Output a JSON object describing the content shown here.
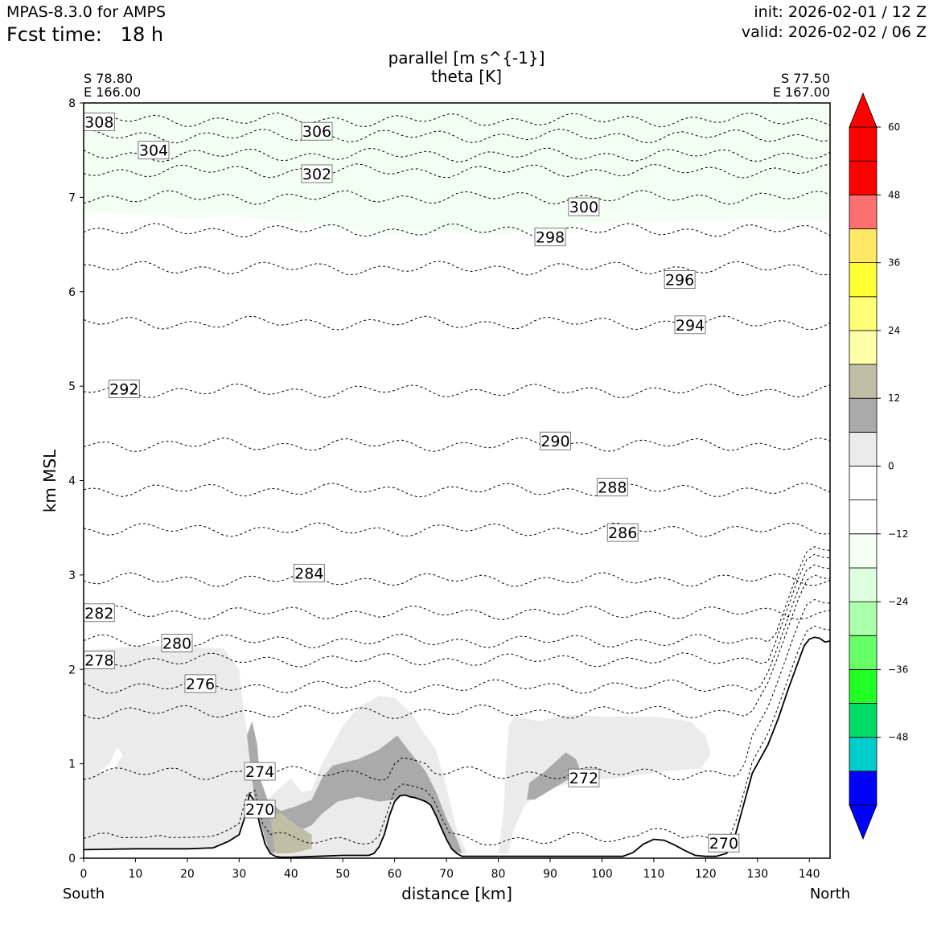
{
  "header": {
    "model": "MPAS-8.3.0 for AMPS",
    "fcst_label": "Fcst time:",
    "fcst_value": "18 h",
    "init": "init: 2026-02-01 / 12 Z",
    "valid": "valid: 2026-02-02 / 06 Z"
  },
  "endpoints": {
    "start_lat": "S 78.80",
    "start_lon": "E 166.00",
    "end_lat": "S 77.50",
    "end_lon": "E 167.00",
    "start_dir": "South",
    "end_dir": "North"
  },
  "colors": {
    "terrain": "#000000",
    "contour": "#000000",
    "light_gray": "#ebebeb",
    "mid_gray": "#aaaaaa",
    "khaki": "#bfbfa5",
    "faint_green": "#f2fff2"
  },
  "chart_data": {
    "type": "heatmap",
    "title": "parallel [m s^{-1}]",
    "subtitle": "theta [K]",
    "xlabel": "distance [km]",
    "ylabel": "km MSL",
    "xlim": [
      0,
      144
    ],
    "ylim": [
      0,
      8
    ],
    "x_ticks": [
      0,
      10,
      20,
      30,
      40,
      50,
      60,
      70,
      80,
      90,
      100,
      110,
      120,
      130,
      140
    ],
    "y_ticks": [
      0,
      1,
      2,
      3,
      4,
      5,
      6,
      7,
      8
    ],
    "colorbar": {
      "levels": [
        -60,
        -54,
        -48,
        -42,
        -36,
        -30,
        -24,
        -18,
        -12,
        -6,
        0,
        6,
        12,
        18,
        24,
        30,
        36,
        42,
        48,
        54,
        60
      ],
      "colors": [
        "#0000ff",
        "#00cccc",
        "#00dd66",
        "#22ff22",
        "#66ff66",
        "#aaffaa",
        "#ddffdd",
        "#f2fff2",
        "#ffffff",
        "#ffffff",
        "#ebebeb",
        "#aaaaaa",
        "#bfbfa5",
        "#ffffaa",
        "#ffff77",
        "#ffff33",
        "#ffe866",
        "#ff7070",
        "#ff0000",
        "#ff0000"
      ],
      "tick_labels": [
        "60",
        "48",
        "36",
        "24",
        "12",
        "0",
        "−12",
        "−24",
        "−36",
        "−48"
      ],
      "tick_values": [
        60,
        48,
        36,
        24,
        12,
        0,
        -12,
        -24,
        -36,
        -48
      ]
    },
    "terrain": {
      "x": [
        0,
        10,
        20,
        25,
        28,
        30,
        31,
        32,
        33,
        34,
        35,
        36,
        37,
        38,
        40,
        45,
        50,
        55,
        56,
        57,
        58,
        59,
        60,
        61,
        62,
        63,
        64,
        65,
        66,
        67,
        68,
        69,
        70,
        71,
        72,
        73,
        74,
        75,
        80,
        90,
        100,
        104,
        106,
        108,
        110,
        112,
        114,
        116,
        118,
        120,
        122,
        124,
        125,
        126,
        127,
        128,
        129,
        130,
        132,
        134,
        136,
        138,
        139,
        140,
        141,
        142,
        143,
        144
      ],
      "y": [
        0.09,
        0.1,
        0.1,
        0.11,
        0.18,
        0.25,
        0.42,
        0.68,
        0.6,
        0.35,
        0.15,
        0.05,
        0.02,
        0.01,
        0.01,
        0.02,
        0.03,
        0.03,
        0.05,
        0.12,
        0.25,
        0.45,
        0.6,
        0.66,
        0.67,
        0.65,
        0.64,
        0.62,
        0.6,
        0.56,
        0.45,
        0.32,
        0.2,
        0.1,
        0.05,
        0.02,
        0.02,
        0.02,
        0.02,
        0.02,
        0.02,
        0.02,
        0.06,
        0.15,
        0.2,
        0.19,
        0.14,
        0.08,
        0.03,
        0.02,
        0.02,
        0.05,
        0.12,
        0.3,
        0.5,
        0.7,
        0.9,
        1.0,
        1.2,
        1.48,
        1.8,
        2.1,
        2.25,
        2.32,
        2.34,
        2.33,
        2.29,
        2.3
      ]
    },
    "theta_levels": [
      308,
      306,
      304,
      302,
      300,
      298,
      296,
      294,
      292,
      290,
      288,
      286,
      284,
      282,
      280,
      278,
      276,
      274,
      272,
      270
    ],
    "theta_heights": [
      7.82,
      7.65,
      7.45,
      7.28,
      7.0,
      6.65,
      6.25,
      5.67,
      4.95,
      4.38,
      3.9,
      3.48,
      2.95,
      2.6,
      2.3,
      2.1,
      1.82,
      1.55,
      0.9,
      0.2
    ],
    "contour_labels": [
      {
        "text": "308",
        "x": 3,
        "y": 7.8
      },
      {
        "text": "306",
        "x": 45,
        "y": 7.7
      },
      {
        "text": "304",
        "x": 13.5,
        "y": 7.5
      },
      {
        "text": "302",
        "x": 45,
        "y": 7.25
      },
      {
        "text": "300",
        "x": 96.5,
        "y": 6.9
      },
      {
        "text": "298",
        "x": 90,
        "y": 6.58
      },
      {
        "text": "296",
        "x": 115,
        "y": 6.13
      },
      {
        "text": "294",
        "x": 117,
        "y": 5.65
      },
      {
        "text": "292",
        "x": 7.8,
        "y": 4.97
      },
      {
        "text": "290",
        "x": 91,
        "y": 4.42
      },
      {
        "text": "288",
        "x": 102,
        "y": 3.93
      },
      {
        "text": "286",
        "x": 104,
        "y": 3.45
      },
      {
        "text": "284",
        "x": 43.5,
        "y": 3.02
      },
      {
        "text": "282",
        "x": 3,
        "y": 2.6
      },
      {
        "text": "280",
        "x": 18,
        "y": 2.28
      },
      {
        "text": "278",
        "x": 3,
        "y": 2.1
      },
      {
        "text": "276",
        "x": 22.5,
        "y": 1.85
      },
      {
        "text": "274",
        "x": 34,
        "y": 0.92
      },
      {
        "text": "272",
        "x": 96.5,
        "y": 0.85
      },
      {
        "text": "270",
        "x": 34,
        "y": 0.52
      },
      {
        "text": "270",
        "x": 123.5,
        "y": 0.16
      }
    ]
  }
}
